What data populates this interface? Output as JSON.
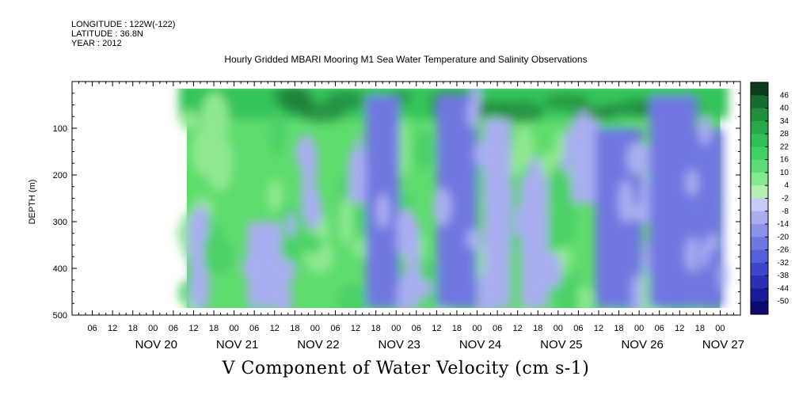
{
  "header": {
    "longitude": "LONGITUDE : 122W(-122)",
    "latitude": "LATITUDE : 36.8N",
    "year": "YEAR : 2012"
  },
  "chart_data": {
    "type": "heatmap",
    "title": "Hourly Gridded MBARI Mooring M1 Sea Water Temperature and Salinity Observations",
    "xlabel": "V Component of Water Velocity (cm s-1)",
    "ylabel": "DEPTH (m)",
    "xlim": [
      "2012-11-19T00:00",
      "2012-11-27T06:00"
    ],
    "ylim": [
      500,
      0
    ],
    "data_range_x": [
      "2012-11-20T10:00",
      "2012-11-27T00:00"
    ],
    "data_range_depth": [
      20,
      485
    ],
    "y_ticks": [
      100,
      200,
      300,
      400,
      500
    ],
    "x_hour_ticks": [
      "06",
      "12",
      "18",
      "00",
      "06",
      "12",
      "18",
      "00",
      "06",
      "12",
      "18",
      "00",
      "06",
      "12",
      "18",
      "00",
      "06",
      "12",
      "18",
      "00",
      "06",
      "12",
      "18",
      "00",
      "06",
      "12",
      "18",
      "00",
      "06",
      "12",
      "18",
      "00"
    ],
    "x_day_labels": [
      "NOV 20",
      "NOV 21",
      "NOV 22",
      "NOV 23",
      "NOV 24",
      "NOV 25",
      "NOV 26",
      "NOV 27"
    ],
    "colorbar_levels": [
      "46",
      "40",
      "34",
      "28",
      "22",
      "16",
      "10",
      "4",
      "-2",
      "-8",
      "-14",
      "-20",
      "-26",
      "-32",
      "-38",
      "-44",
      "-50"
    ],
    "colors": {
      "strong_positive": "#1f7a36",
      "positive": "#36c45a",
      "weak_positive": "#8fe88f",
      "weak_negative": "#a9aef0",
      "negative": "#6f78e0",
      "strong_negative": "#0a0a80"
    },
    "surface_band": {
      "depth_from": 20,
      "depth_to": 80,
      "approx_value": 22
    },
    "negative_bands": [
      {
        "date": "2012-11-20T13:00",
        "width_h": 4,
        "depth_from": 280,
        "depth_to": 485,
        "value": -8
      },
      {
        "date": "2012-11-21T09:00",
        "width_h": 10,
        "depth_from": 300,
        "depth_to": 485,
        "value": -6
      },
      {
        "date": "2012-11-21T22:00",
        "width_h": 4,
        "depth_from": 150,
        "depth_to": 280,
        "value": -6
      },
      {
        "date": "2012-11-22T13:00",
        "width_h": 6,
        "depth_from": 150,
        "depth_to": 260,
        "value": -8
      },
      {
        "date": "2012-11-22T20:00",
        "width_h": 10,
        "depth_from": 30,
        "depth_to": 485,
        "value": -14
      },
      {
        "date": "2012-11-23T05:00",
        "width_h": 4,
        "depth_from": 300,
        "depth_to": 485,
        "value": -6
      },
      {
        "date": "2012-11-23T18:00",
        "width_h": 12,
        "depth_from": 30,
        "depth_to": 485,
        "value": -14
      },
      {
        "date": "2012-11-24T06:00",
        "width_h": 8,
        "depth_from": 80,
        "depth_to": 485,
        "value": -10
      },
      {
        "date": "2012-11-24T17:00",
        "width_h": 8,
        "depth_from": 200,
        "depth_to": 485,
        "value": -10
      },
      {
        "date": "2012-11-25T08:00",
        "width_h": 8,
        "depth_from": 80,
        "depth_to": 260,
        "value": -8
      },
      {
        "date": "2012-11-25T18:00",
        "width_h": 14,
        "depth_from": 100,
        "depth_to": 485,
        "value": -16
      },
      {
        "date": "2012-11-26T10:00",
        "width_h": 14,
        "depth_from": 30,
        "depth_to": 485,
        "value": -20
      },
      {
        "date": "2012-11-26T21:00",
        "width_h": 8,
        "depth_from": 100,
        "depth_to": 485,
        "value": -14
      }
    ]
  }
}
